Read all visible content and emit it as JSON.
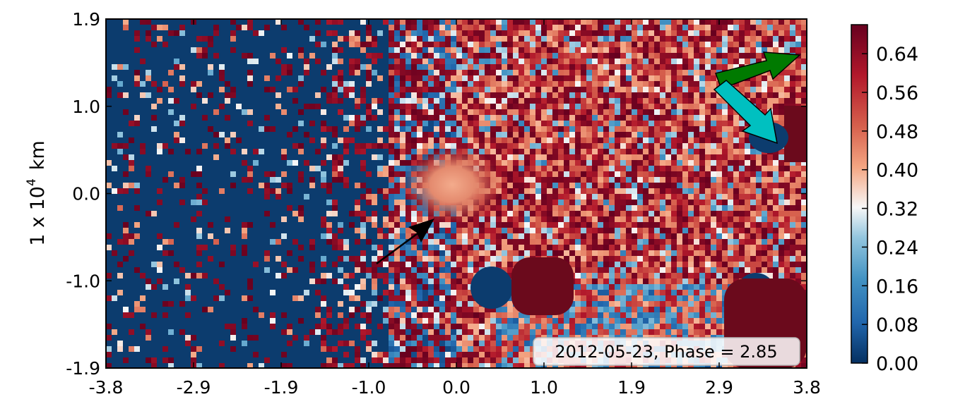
{
  "chart_data": {
    "type": "heatmap",
    "title": "",
    "xlabel": "",
    "ylabel": "1 x 10",
    "ylabel_exponent": "4",
    "ylabel_unit": "km",
    "xlim": [
      -3.8,
      3.8
    ],
    "ylim": [
      -1.9,
      1.9
    ],
    "x_ticks": [
      "-3.8",
      "-2.9",
      "-1.9",
      "-1.0",
      "0.0",
      "1.0",
      "1.9",
      "2.9",
      "3.8"
    ],
    "y_ticks": [
      "1.9",
      "1.0",
      "0.0",
      "-1.0",
      "-1.9"
    ],
    "colorbar": {
      "colormap": "RdBu_r",
      "range": [
        0.0,
        0.7
      ],
      "ticks": [
        "0.64",
        "0.56",
        "0.48",
        "0.40",
        "0.32",
        "0.24",
        "0.16",
        "0.08",
        "0.00"
      ]
    },
    "annotation": "2012-05-23, Phase = 2.85",
    "description_regions": {
      "nucleus_peak_value": 0.48,
      "left_half_background_value": 0.0,
      "right_half_background_value": 0.66
    },
    "arrows": [
      {
        "name": "nucleus-pointer",
        "color": "#000000"
      },
      {
        "name": "sun-direction",
        "color": "#007a00"
      },
      {
        "name": "velocity-direction",
        "color": "#00c0c0"
      }
    ],
    "grid": false
  }
}
